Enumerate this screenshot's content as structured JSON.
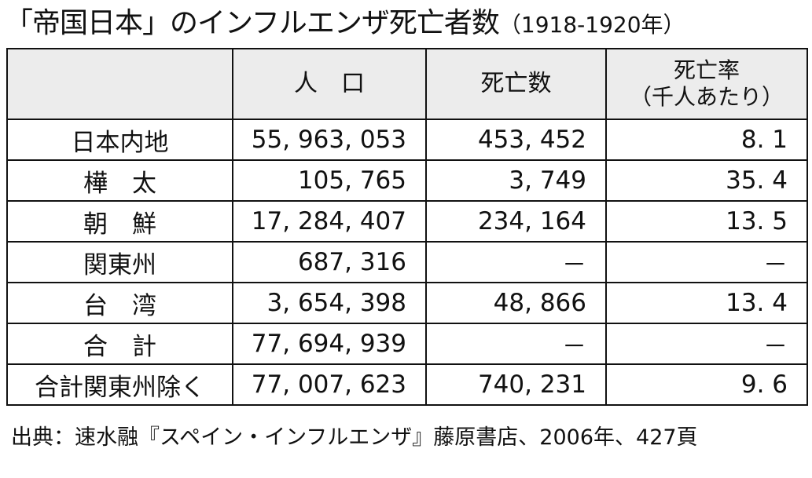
{
  "title": {
    "main": "「帝国日本」のインフルエンザ死亡者数",
    "years": "（1918-1920年）"
  },
  "table": {
    "headers": {
      "region": "",
      "population": "人　口",
      "deaths": "死亡数",
      "rate_line1": "死亡率",
      "rate_line2": "（千人あたり）"
    },
    "rows": [
      {
        "region": "日本内地",
        "population": "55, 963, 053",
        "deaths": "453, 452",
        "rate": "8. 1"
      },
      {
        "region": "樺　太",
        "population": "105, 765",
        "deaths": "3, 749",
        "rate": "35. 4"
      },
      {
        "region": "朝　鮮",
        "population": "17, 284, 407",
        "deaths": "234, 164",
        "rate": "13. 5"
      },
      {
        "region": "関東州",
        "population": "687, 316",
        "deaths": "－",
        "rate": "－"
      },
      {
        "region": "台　湾",
        "population": "3, 654, 398",
        "deaths": "48, 866",
        "rate": "13. 4"
      },
      {
        "region": "合　計",
        "population": "77, 694, 939",
        "deaths": "－",
        "rate": "－"
      },
      {
        "region": "合計関東州除く",
        "population": "77, 007, 623",
        "deaths": "740, 231",
        "rate": "9. 6"
      }
    ]
  },
  "source": "出典：速水融『スペイン・インフルエンザ』藤原書店、2006年、427頁"
}
